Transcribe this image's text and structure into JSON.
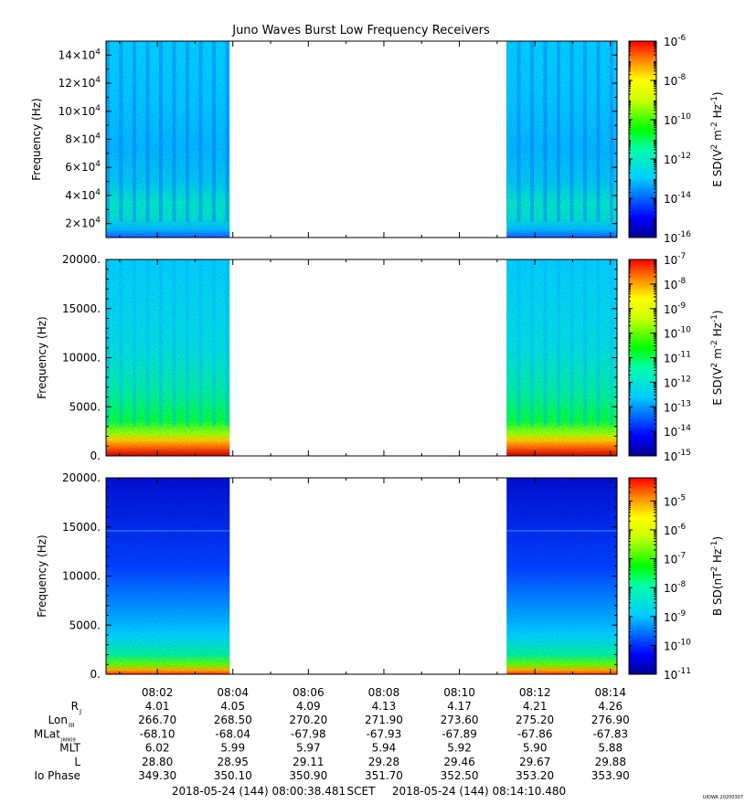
{
  "title": "Juno Waves Burst Low Frequency Receivers",
  "watermark": "UIOWA 20200307",
  "footer": {
    "start": "2018-05-24 (144) 08:00:38.481",
    "scet": "SCET",
    "end": "2018-05-24 (144) 08:14:10.480"
  },
  "time_ticks": [
    "08:02",
    "08:04",
    "08:06",
    "08:08",
    "08:10",
    "08:12",
    "08:14"
  ],
  "ephemeris": [
    {
      "label": "R",
      "sub": "J",
      "values": [
        "4.01",
        "4.05",
        "4.09",
        "4.13",
        "4.17",
        "4.21",
        "4.26"
      ]
    },
    {
      "label": "Lon",
      "sub": "III",
      "values": [
        "266.70",
        "268.50",
        "270.20",
        "271.90",
        "273.60",
        "275.20",
        "276.90"
      ]
    },
    {
      "label": "MLat",
      "sub": "JRM09",
      "values": [
        "-68.10",
        "-68.04",
        "-67.98",
        "-67.93",
        "-67.89",
        "-67.86",
        "-67.83"
      ]
    },
    {
      "label": "MLT",
      "sub": "",
      "values": [
        "6.02",
        "5.99",
        "5.97",
        "5.94",
        "5.92",
        "5.90",
        "5.88"
      ]
    },
    {
      "label": "L",
      "sub": "",
      "values": [
        "28.80",
        "28.95",
        "29.11",
        "29.28",
        "29.46",
        "29.67",
        "29.88"
      ]
    },
    {
      "label": "Io Phase",
      "sub": "",
      "values": [
        "349.30",
        "350.10",
        "350.90",
        "351.70",
        "352.50",
        "353.20",
        "353.90"
      ]
    }
  ],
  "chart_data": [
    {
      "type": "heatmap",
      "panel": "top",
      "ylabel": "Frequency (Hz)",
      "ylim": [
        10000,
        150000
      ],
      "y_ticks": [
        {
          "m": "2",
          "e": "4"
        },
        {
          "m": "4",
          "e": "4"
        },
        {
          "m": "6",
          "e": "4"
        },
        {
          "m": "8",
          "e": "4"
        },
        {
          "m": "10",
          "e": "4"
        },
        {
          "m": "12",
          "e": "4"
        },
        {
          "m": "14",
          "e": "4"
        }
      ],
      "y_tick_values": [
        20000,
        40000,
        60000,
        80000,
        100000,
        120000,
        140000
      ],
      "xlim": [
        "08:00:38.481",
        "08:14:10.480"
      ],
      "data_intervals": [
        [
          "08:00:38",
          "08:03:55"
        ],
        [
          "08:11:15",
          "08:14:10"
        ]
      ],
      "colorbar": {
        "label_base": "E SD(V",
        "label_mid": " m",
        "label_tail": " Hz",
        "label_end": ")",
        "sup1": "2",
        "sup2": "-2",
        "sup3": "-1",
        "scale": "log",
        "range_exp": [
          -16,
          -6
        ],
        "tick_exps": [
          "-16",
          "-14",
          "-12",
          "-10",
          "-8",
          "-6"
        ]
      }
    },
    {
      "type": "heatmap",
      "panel": "middle",
      "ylabel": "Frequency (Hz)",
      "ylim": [
        0,
        20000
      ],
      "y_tick_labels": [
        "0.",
        "5000.",
        "10000.",
        "15000.",
        "20000."
      ],
      "y_tick_values": [
        0,
        5000,
        10000,
        15000,
        20000
      ],
      "xlim": [
        "08:00:38.481",
        "08:14:10.480"
      ],
      "data_intervals": [
        [
          "08:00:38",
          "08:03:55"
        ],
        [
          "08:11:15",
          "08:14:10"
        ]
      ],
      "colorbar": {
        "label_base": "E SD(V",
        "label_mid": " m",
        "label_tail": " Hz",
        "label_end": ")",
        "sup1": "2",
        "sup2": "-2",
        "sup3": "-1",
        "scale": "log",
        "range_exp": [
          -15,
          -7
        ],
        "tick_exps": [
          "-15",
          "-14",
          "-13",
          "-12",
          "-11",
          "-10",
          "-9",
          "-8",
          "-7"
        ]
      }
    },
    {
      "type": "heatmap",
      "panel": "bottom",
      "ylabel": "Frequency (Hz)",
      "ylim": [
        0,
        20000
      ],
      "y_tick_labels": [
        "0.",
        "5000.",
        "10000.",
        "15000.",
        "20000."
      ],
      "y_tick_values": [
        0,
        5000,
        10000,
        15000,
        20000
      ],
      "xlim": [
        "08:00:38.481",
        "08:14:10.480"
      ],
      "data_intervals": [
        [
          "08:00:38",
          "08:03:55"
        ],
        [
          "08:11:15",
          "08:14:10"
        ]
      ],
      "colorbar": {
        "label_base": "B SD(nT",
        "label_mid": " Hz",
        "label_tail": "",
        "label_end": ")",
        "sup1": "2",
        "sup2": "-1",
        "sup3": "",
        "scale": "log",
        "range_exp": [
          -11,
          -4.2
        ],
        "tick_exps": [
          "-11",
          "-10",
          "-9",
          "-8",
          "-7",
          "-6",
          "-5"
        ]
      }
    }
  ]
}
